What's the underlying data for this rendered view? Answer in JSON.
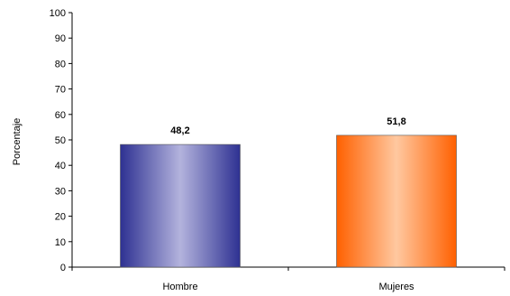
{
  "chart_data": {
    "type": "bar",
    "title": "",
    "xlabel": "",
    "ylabel": "Porcentaje",
    "ylim": [
      0,
      100
    ],
    "yticks": [
      0,
      10,
      20,
      30,
      40,
      50,
      60,
      70,
      80,
      90,
      100
    ],
    "grid": false,
    "legend": "none",
    "categories": [
      "Hombre",
      "Mujeres"
    ],
    "values": [
      48.2,
      51.8
    ],
    "value_labels": [
      "48,2",
      "51,8"
    ],
    "colors": {
      "Hombre": {
        "edge": "#2E3192",
        "center": "#B3B3DD"
      },
      "Mujeres": {
        "edge": "#FF6000",
        "center": "#FFC8A0"
      }
    }
  }
}
